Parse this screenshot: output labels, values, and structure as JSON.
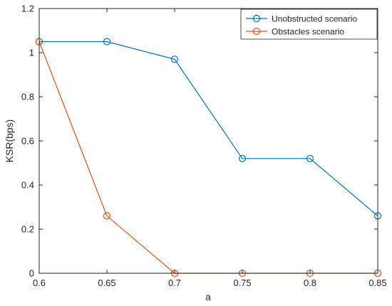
{
  "chart_data": {
    "type": "line",
    "title": "",
    "xlabel": "a",
    "ylabel": "KSR(bps)",
    "x": [
      0.6,
      0.65,
      0.7,
      0.75,
      0.8,
      0.85
    ],
    "xlim": [
      0.6,
      0.85
    ],
    "ylim": [
      0,
      1.2
    ],
    "x_ticks": [
      "0.6",
      "0.65",
      "0.7",
      "0.75",
      "0.8",
      "0.85"
    ],
    "y_ticks": [
      "0",
      "0.2",
      "0.4",
      "0.6",
      "0.8",
      "1",
      "1.2"
    ],
    "grid": false,
    "legend_position": "top-right",
    "series": [
      {
        "name": "Unobstructed scenario",
        "color": "#0072BD",
        "marker": "circle",
        "values": [
          1.05,
          1.05,
          0.97,
          0.52,
          0.52,
          0.26
        ]
      },
      {
        "name": "Obstacles scenario",
        "color": "#D95319",
        "marker": "circle",
        "values": [
          1.05,
          0.26,
          0.0,
          0.0,
          0.0,
          0.0
        ]
      }
    ]
  }
}
